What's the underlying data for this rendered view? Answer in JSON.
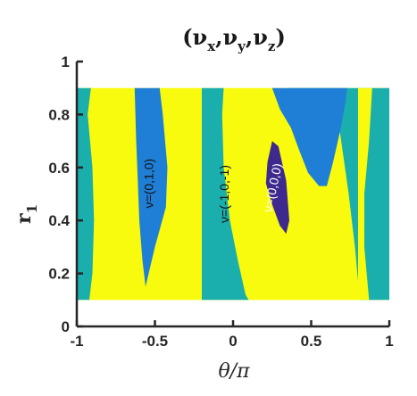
{
  "chart_data": {
    "type": "heatmap",
    "title_parts": [
      "(ν",
      "x",
      ",ν",
      "y",
      ",ν",
      "z",
      ")"
    ],
    "xlabel": "θ/π",
    "ylabel_main": "r",
    "ylabel_sub": "1",
    "xlim": [
      -1,
      1
    ],
    "ylim": [
      0,
      1
    ],
    "data_extent": {
      "r_min": 0.1,
      "r_max": 0.9
    },
    "xticks": [
      -1,
      -0.5,
      0,
      0.5,
      1
    ],
    "xtick_labels": [
      "-1",
      "-0.5",
      "0",
      "0.5",
      "1"
    ],
    "yticks": [
      0,
      0.2,
      0.4,
      0.6,
      0.8,
      1
    ],
    "ytick_labels": [
      "0",
      "0.2",
      "0.4",
      "0.6",
      "0.8",
      "1"
    ],
    "colors": {
      "yellow": "#f9fb0e",
      "teal": "#1aafad",
      "blue": "#1f7fd6",
      "purple": "#3e2a8e",
      "label_dark": "#111111",
      "label_light": "#ffffff"
    },
    "regions": [
      {
        "name": "teal-left",
        "color": "teal",
        "label": "",
        "polygon": [
          [
            -1,
            0.1
          ],
          [
            -1,
            0.9
          ],
          [
            -0.91,
            0.9
          ],
          [
            -0.93,
            0.8
          ],
          [
            -0.9,
            0.6
          ],
          [
            -0.89,
            0.4
          ],
          [
            -0.9,
            0.2
          ],
          [
            -0.92,
            0.1
          ]
        ]
      },
      {
        "name": "blue-left",
        "color": "blue",
        "label": "ν=(0,1,0)",
        "polygon": [
          [
            -0.63,
            0.9
          ],
          [
            -0.47,
            0.9
          ],
          [
            -0.45,
            0.8
          ],
          [
            -0.42,
            0.6
          ],
          [
            -0.43,
            0.45
          ],
          [
            -0.5,
            0.3
          ],
          [
            -0.56,
            0.15
          ],
          [
            -0.58,
            0.25
          ],
          [
            -0.6,
            0.4
          ],
          [
            -0.61,
            0.55
          ],
          [
            -0.62,
            0.7
          ]
        ]
      },
      {
        "name": "teal-center",
        "color": "teal",
        "label": "ν=(-1,0,-1)",
        "polygon": [
          [
            -0.2,
            0.1
          ],
          [
            -0.2,
            0.9
          ],
          [
            -0.06,
            0.9
          ],
          [
            -0.07,
            0.8
          ],
          [
            -0.06,
            0.6
          ],
          [
            -0.02,
            0.4
          ],
          [
            0.03,
            0.25
          ],
          [
            0.08,
            0.12
          ],
          [
            0.1,
            0.1
          ]
        ]
      },
      {
        "name": "teal-upper",
        "color": "teal",
        "label": "",
        "polygon": [
          [
            0.35,
            0.9
          ],
          [
            1,
            0.9
          ],
          [
            1,
            0.1
          ],
          [
            0.81,
            0.1
          ],
          [
            0.78,
            0.3
          ],
          [
            0.74,
            0.5
          ],
          [
            0.68,
            0.75
          ],
          [
            0.63,
            0.8
          ],
          [
            0.6,
            0.75
          ],
          [
            0.52,
            0.6
          ],
          [
            0.45,
            0.72
          ],
          [
            0.38,
            0.82
          ]
        ]
      },
      {
        "name": "blue-right",
        "color": "blue",
        "label": "",
        "polygon": [
          [
            0.25,
            0.9
          ],
          [
            0.73,
            0.9
          ],
          [
            0.72,
            0.85
          ],
          [
            0.69,
            0.75
          ],
          [
            0.64,
            0.62
          ],
          [
            0.6,
            0.53
          ],
          [
            0.55,
            0.53
          ],
          [
            0.48,
            0.58
          ],
          [
            0.42,
            0.67
          ],
          [
            0.37,
            0.75
          ],
          [
            0.3,
            0.82
          ]
        ]
      },
      {
        "name": "yellow-right",
        "color": "yellow",
        "label": "",
        "polygon": [
          [
            0.8,
            0.1
          ],
          [
            0.8,
            0.9
          ],
          [
            0.89,
            0.9
          ],
          [
            0.87,
            0.7
          ],
          [
            0.84,
            0.5
          ],
          [
            0.84,
            0.3
          ],
          [
            0.87,
            0.1
          ]
        ]
      },
      {
        "name": "purple-center",
        "color": "purple",
        "label": "ν=(0,0,0)",
        "polygon": [
          [
            0.22,
            0.62
          ],
          [
            0.25,
            0.7
          ],
          [
            0.29,
            0.68
          ],
          [
            0.34,
            0.55
          ],
          [
            0.36,
            0.4
          ],
          [
            0.34,
            0.35
          ],
          [
            0.3,
            0.38
          ],
          [
            0.25,
            0.46
          ],
          [
            0.21,
            0.54
          ]
        ]
      }
    ],
    "region_labels": [
      {
        "region": "blue-left",
        "x": -0.51,
        "y": 0.54,
        "fill": "label_dark",
        "rotate": -90
      },
      {
        "region": "teal-center",
        "x": -0.03,
        "y": 0.5,
        "fill": "label_dark",
        "rotate": -90
      },
      {
        "region": "purple-center",
        "x": 0.28,
        "y": 0.52,
        "fill": "label_light",
        "rotate": -78
      }
    ]
  }
}
